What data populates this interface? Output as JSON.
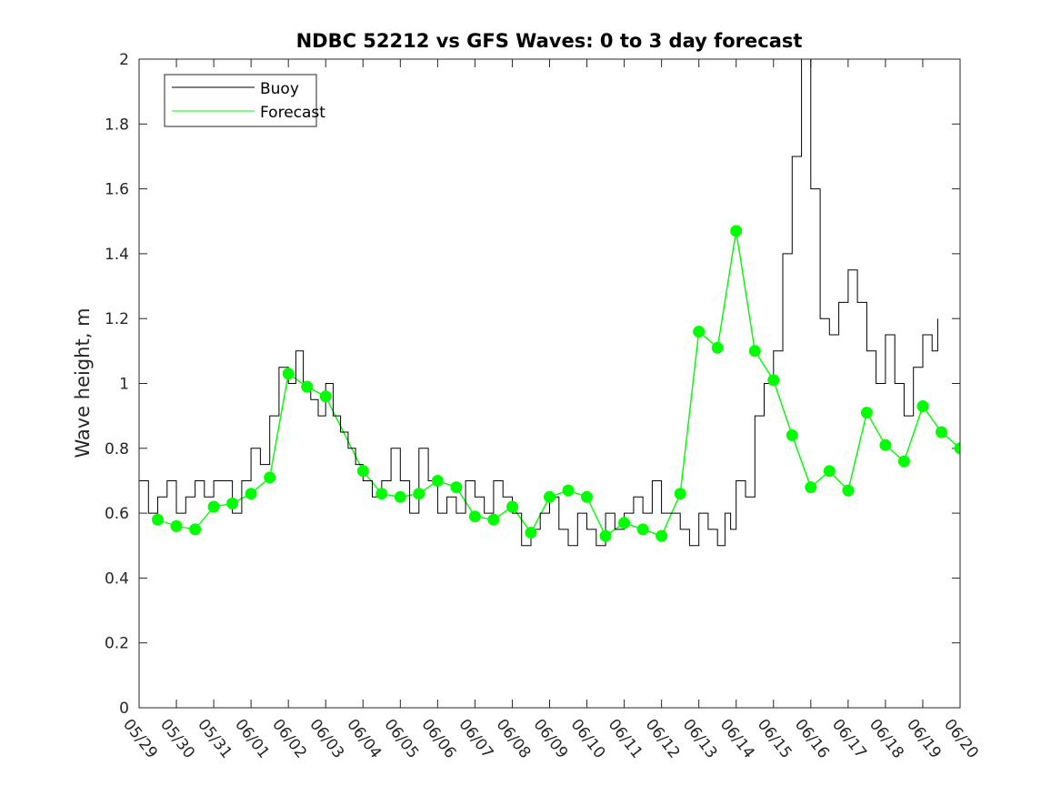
{
  "chart_data": {
    "type": "line",
    "title": "NDBC 52212 vs GFS Waves: 0 to 3 day forecast",
    "xlabel": "",
    "ylabel": "Wave height, m",
    "ylim": [
      0,
      2
    ],
    "yticks": [
      "0",
      "0.2",
      "0.4",
      "0.6",
      "0.8",
      "1",
      "1.2",
      "1.4",
      "1.6",
      "1.8",
      "2"
    ],
    "xlim": [
      0,
      22
    ],
    "xticks": [
      "05/29",
      "05/30",
      "05/31",
      "06/01",
      "06/02",
      "06/03",
      "06/04",
      "06/05",
      "06/06",
      "06/07",
      "06/08",
      "06/09",
      "06/10",
      "06/11",
      "06/12",
      "06/13",
      "06/14",
      "06/15",
      "06/16",
      "06/17",
      "06/18",
      "06/19",
      "06/20"
    ],
    "x_units": "days since 05/29",
    "grid": false,
    "legend": {
      "placement": "top-left",
      "entries": [
        "Buoy",
        "Forecast"
      ]
    },
    "colors": {
      "buoy": "#000000",
      "forecast": "#00ff00",
      "axes": "#262626"
    },
    "series": [
      {
        "name": "Buoy",
        "x": [
          0.0,
          0.25,
          0.5,
          0.75,
          1.0,
          1.25,
          1.5,
          1.75,
          2.0,
          2.25,
          2.5,
          2.75,
          3.0,
          3.25,
          3.5,
          3.75,
          4.0,
          4.2,
          4.4,
          4.6,
          4.8,
          5.0,
          5.2,
          5.4,
          5.6,
          5.8,
          6.0,
          6.25,
          6.5,
          6.75,
          7.0,
          7.25,
          7.5,
          7.75,
          8.0,
          8.25,
          8.5,
          8.75,
          9.0,
          9.25,
          9.5,
          9.75,
          10.0,
          10.25,
          10.5,
          10.75,
          11.0,
          11.25,
          11.5,
          11.75,
          12.0,
          12.25,
          12.5,
          12.75,
          13.0,
          13.25,
          13.5,
          13.75,
          14.0,
          14.25,
          14.5,
          14.75,
          15.0,
          15.25,
          15.5,
          15.7,
          15.85,
          16.0,
          16.25,
          16.5,
          16.75,
          17.0,
          17.25,
          17.5,
          17.75,
          18.0,
          18.25,
          18.5,
          18.75,
          19.0,
          19.25,
          19.5,
          19.75,
          20.0,
          20.25,
          20.5,
          20.75,
          21.0,
          21.25,
          21.4
        ],
        "y": [
          0.7,
          0.6,
          0.65,
          0.7,
          0.6,
          0.65,
          0.7,
          0.65,
          0.7,
          0.7,
          0.6,
          0.7,
          0.8,
          0.75,
          0.9,
          1.05,
          1.0,
          1.1,
          1.0,
          0.95,
          0.9,
          1.0,
          0.9,
          0.85,
          0.8,
          0.75,
          0.7,
          0.65,
          0.7,
          0.8,
          0.7,
          0.6,
          0.8,
          0.7,
          0.6,
          0.65,
          0.6,
          0.7,
          0.65,
          0.6,
          0.7,
          0.65,
          0.6,
          0.5,
          0.55,
          0.6,
          0.65,
          0.55,
          0.5,
          0.6,
          0.55,
          0.5,
          0.6,
          0.55,
          0.6,
          0.65,
          0.6,
          0.7,
          0.6,
          0.6,
          0.55,
          0.5,
          0.6,
          0.55,
          0.5,
          0.6,
          0.55,
          0.7,
          0.65,
          0.9,
          1.0,
          1.1,
          1.4,
          1.7,
          2.0,
          1.6,
          1.2,
          1.15,
          1.25,
          1.35,
          1.25,
          1.1,
          1.0,
          1.15,
          1.0,
          0.9,
          1.05,
          1.15,
          1.1,
          1.2
        ]
      },
      {
        "name": "Forecast",
        "markers_x": [
          0.5,
          1.0,
          1.5,
          2.0,
          2.5,
          3.0,
          3.5,
          4.0,
          4.5,
          5.0,
          6.0,
          6.5,
          7.0,
          7.5,
          8.0,
          8.5,
          9.0,
          9.5,
          10.0,
          10.5,
          11.0,
          11.5,
          12.0,
          12.5,
          13.0,
          13.5,
          14.0,
          14.5,
          15.0,
          15.5,
          16.0,
          16.5,
          17.0,
          17.5,
          18.0,
          18.5,
          19.0,
          19.5,
          20.0,
          20.5,
          21.0,
          21.5,
          22.0
        ],
        "markers_y": [
          0.58,
          0.56,
          0.55,
          0.62,
          0.63,
          0.66,
          0.71,
          1.03,
          0.99,
          0.96,
          0.73,
          0.66,
          0.65,
          0.66,
          0.7,
          0.68,
          0.59,
          0.58,
          0.62,
          0.54,
          0.65,
          0.67,
          0.65,
          0.53,
          0.57,
          0.55,
          0.53,
          0.66,
          1.16,
          1.11,
          1.47,
          1.1,
          1.01,
          0.84,
          0.68,
          0.73,
          0.67,
          0.91,
          0.81,
          0.76,
          0.93,
          0.85,
          0.8
        ]
      }
    ]
  }
}
